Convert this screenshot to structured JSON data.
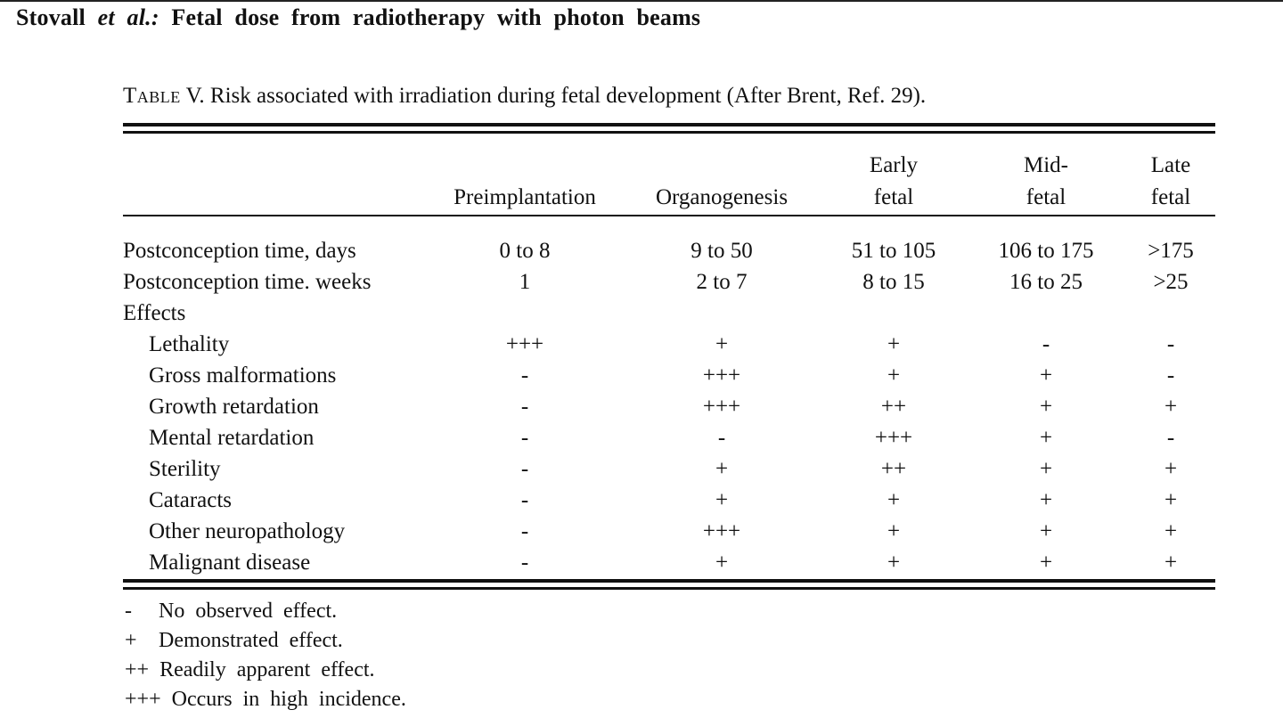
{
  "header": {
    "authors": "Stovall",
    "etal": "et al.:",
    "title": "Fetal dose from radiotherapy with photon beams"
  },
  "caption": {
    "table_word": "Table",
    "text": "V. Risk associated with irradiation during fetal development (After Brent, Ref. 29)."
  },
  "table": {
    "columns": [
      {
        "line1": "",
        "line2": "Preimplantation"
      },
      {
        "line1": "",
        "line2": "Organogenesis"
      },
      {
        "line1": "Early",
        "line2": "fetal"
      },
      {
        "line1": "Mid-",
        "line2": "fetal"
      },
      {
        "line1": "Late",
        "line2": "fetal"
      }
    ],
    "rows": [
      {
        "label": "Postconception time, days",
        "values": [
          "0 to 8",
          "9 to 50",
          "51 to 105",
          "106 to 175",
          ">175"
        ]
      },
      {
        "label": "Postconception time. weeks",
        "values": [
          "1",
          "2 to 7",
          "8 to 15",
          "16 to 25",
          ">25"
        ]
      },
      {
        "label": "Effects",
        "values": [
          "",
          "",
          "",
          "",
          ""
        ]
      },
      {
        "label": "Lethality",
        "values": [
          "+++",
          "+",
          "+",
          "-",
          "-"
        ]
      },
      {
        "label": "Gross malformations",
        "values": [
          "-",
          "+++",
          "+",
          "+",
          "-"
        ]
      },
      {
        "label": "Growth retardation",
        "values": [
          "-",
          "+++",
          "++",
          "+",
          "+"
        ]
      },
      {
        "label": "Mental retardation",
        "values": [
          "-",
          "-",
          "+++",
          "+",
          "-"
        ]
      },
      {
        "label": "Sterility",
        "values": [
          "-",
          "+",
          "++",
          "+",
          "+"
        ]
      },
      {
        "label": "Cataracts",
        "values": [
          "-",
          "+",
          "+",
          "+",
          "+"
        ]
      },
      {
        "label": "Other neuropathology",
        "values": [
          "-",
          "+++",
          "+",
          "+",
          "+"
        ]
      },
      {
        "label": "Malignant disease",
        "values": [
          "-",
          "+",
          "+",
          "+",
          "+"
        ]
      }
    ]
  },
  "notes": [
    {
      "symbol": "-",
      "text": "No observed effect."
    },
    {
      "symbol": "+",
      "text": "Demonstrated effect."
    },
    {
      "symbol": "++",
      "text": "Readily apparent effect."
    },
    {
      "symbol": "+++",
      "text": "Occurs in high incidence."
    }
  ]
}
